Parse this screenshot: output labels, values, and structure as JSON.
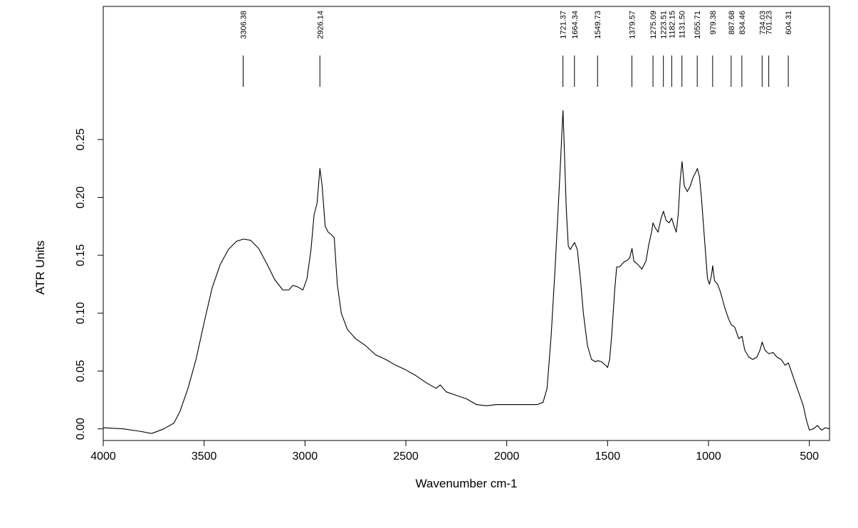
{
  "chart_data": {
    "type": "line",
    "title": "",
    "xlabel": "Wavenumber cm-1",
    "ylabel": "ATR Units",
    "xlim": [
      4000,
      400
    ],
    "ylim": [
      -0.01,
      0.365
    ],
    "x_reversed": true,
    "grid": false,
    "x_ticks": [
      {
        "value": 4000,
        "label": "4000"
      },
      {
        "value": 3500,
        "label": "3500"
      },
      {
        "value": 3000,
        "label": "3000"
      },
      {
        "value": 2500,
        "label": "2500"
      },
      {
        "value": 2000,
        "label": "2000"
      },
      {
        "value": 1500,
        "label": "1500"
      },
      {
        "value": 1000,
        "label": "1000"
      },
      {
        "value": 500,
        "label": "500"
      }
    ],
    "y_ticks": [
      {
        "value": 0.0,
        "label": "0.00"
      },
      {
        "value": 0.05,
        "label": "0.05"
      },
      {
        "value": 0.1,
        "label": "0.10"
      },
      {
        "value": 0.15,
        "label": "0.15"
      },
      {
        "value": 0.2,
        "label": "0.20"
      },
      {
        "value": 0.25,
        "label": "0.25"
      }
    ],
    "series": [
      {
        "points": [
          [
            4000,
            0.001
          ],
          [
            3900,
            0.0
          ],
          [
            3820,
            -0.002
          ],
          [
            3760,
            -0.004
          ],
          [
            3700,
            0.0
          ],
          [
            3650,
            0.005
          ],
          [
            3620,
            0.015
          ],
          [
            3580,
            0.035
          ],
          [
            3540,
            0.06
          ],
          [
            3500,
            0.092
          ],
          [
            3460,
            0.122
          ],
          [
            3420,
            0.142
          ],
          [
            3380,
            0.155
          ],
          [
            3340,
            0.162
          ],
          [
            3306,
            0.164
          ],
          [
            3270,
            0.163
          ],
          [
            3230,
            0.156
          ],
          [
            3190,
            0.143
          ],
          [
            3150,
            0.129
          ],
          [
            3110,
            0.12
          ],
          [
            3080,
            0.12
          ],
          [
            3060,
            0.124
          ],
          [
            3040,
            0.123
          ],
          [
            3010,
            0.12
          ],
          [
            2990,
            0.13
          ],
          [
            2970,
            0.155
          ],
          [
            2955,
            0.185
          ],
          [
            2940,
            0.195
          ],
          [
            2926,
            0.225
          ],
          [
            2915,
            0.21
          ],
          [
            2900,
            0.175
          ],
          [
            2885,
            0.17
          ],
          [
            2870,
            0.168
          ],
          [
            2855,
            0.165
          ],
          [
            2840,
            0.125
          ],
          [
            2820,
            0.1
          ],
          [
            2790,
            0.086
          ],
          [
            2750,
            0.078
          ],
          [
            2700,
            0.072
          ],
          [
            2650,
            0.064
          ],
          [
            2600,
            0.06
          ],
          [
            2550,
            0.055
          ],
          [
            2500,
            0.051
          ],
          [
            2450,
            0.046
          ],
          [
            2400,
            0.04
          ],
          [
            2350,
            0.035
          ],
          [
            2330,
            0.038
          ],
          [
            2300,
            0.032
          ],
          [
            2250,
            0.029
          ],
          [
            2200,
            0.026
          ],
          [
            2150,
            0.021
          ],
          [
            2100,
            0.02
          ],
          [
            2050,
            0.021
          ],
          [
            2000,
            0.021
          ],
          [
            1950,
            0.021
          ],
          [
            1900,
            0.021
          ],
          [
            1850,
            0.021
          ],
          [
            1820,
            0.023
          ],
          [
            1800,
            0.035
          ],
          [
            1780,
            0.08
          ],
          [
            1760,
            0.14
          ],
          [
            1745,
            0.19
          ],
          [
            1735,
            0.225
          ],
          [
            1725,
            0.262
          ],
          [
            1721,
            0.275
          ],
          [
            1715,
            0.245
          ],
          [
            1705,
            0.19
          ],
          [
            1695,
            0.158
          ],
          [
            1685,
            0.155
          ],
          [
            1675,
            0.158
          ],
          [
            1664,
            0.161
          ],
          [
            1650,
            0.155
          ],
          [
            1635,
            0.13
          ],
          [
            1620,
            0.1
          ],
          [
            1600,
            0.072
          ],
          [
            1580,
            0.06
          ],
          [
            1560,
            0.058
          ],
          [
            1549,
            0.059
          ],
          [
            1530,
            0.058
          ],
          [
            1510,
            0.055
          ],
          [
            1500,
            0.053
          ],
          [
            1490,
            0.06
          ],
          [
            1480,
            0.08
          ],
          [
            1465,
            0.12
          ],
          [
            1455,
            0.14
          ],
          [
            1440,
            0.14
          ],
          [
            1420,
            0.144
          ],
          [
            1400,
            0.146
          ],
          [
            1390,
            0.148
          ],
          [
            1379,
            0.156
          ],
          [
            1370,
            0.145
          ],
          [
            1350,
            0.142
          ],
          [
            1330,
            0.138
          ],
          [
            1310,
            0.145
          ],
          [
            1295,
            0.16
          ],
          [
            1282,
            0.17
          ],
          [
            1275,
            0.178
          ],
          [
            1265,
            0.174
          ],
          [
            1250,
            0.17
          ],
          [
            1235,
            0.182
          ],
          [
            1223,
            0.188
          ],
          [
            1210,
            0.18
          ],
          [
            1195,
            0.178
          ],
          [
            1182,
            0.182
          ],
          [
            1170,
            0.175
          ],
          [
            1160,
            0.17
          ],
          [
            1150,
            0.185
          ],
          [
            1140,
            0.215
          ],
          [
            1131,
            0.231
          ],
          [
            1120,
            0.21
          ],
          [
            1105,
            0.205
          ],
          [
            1090,
            0.21
          ],
          [
            1075,
            0.218
          ],
          [
            1062,
            0.222
          ],
          [
            1055,
            0.225
          ],
          [
            1045,
            0.218
          ],
          [
            1035,
            0.2
          ],
          [
            1020,
            0.165
          ],
          [
            1005,
            0.13
          ],
          [
            995,
            0.125
          ],
          [
            985,
            0.133
          ],
          [
            979,
            0.141
          ],
          [
            970,
            0.128
          ],
          [
            955,
            0.125
          ],
          [
            940,
            0.118
          ],
          [
            920,
            0.105
          ],
          [
            900,
            0.095
          ],
          [
            887,
            0.09
          ],
          [
            870,
            0.088
          ],
          [
            850,
            0.078
          ],
          [
            834,
            0.08
          ],
          [
            820,
            0.068
          ],
          [
            800,
            0.062
          ],
          [
            780,
            0.06
          ],
          [
            760,
            0.062
          ],
          [
            745,
            0.068
          ],
          [
            734,
            0.075
          ],
          [
            720,
            0.068
          ],
          [
            701,
            0.065
          ],
          [
            680,
            0.066
          ],
          [
            660,
            0.062
          ],
          [
            640,
            0.06
          ],
          [
            620,
            0.055
          ],
          [
            604,
            0.057
          ],
          [
            590,
            0.05
          ],
          [
            570,
            0.04
          ],
          [
            550,
            0.03
          ],
          [
            530,
            0.02
          ],
          [
            515,
            0.008
          ],
          [
            500,
            -0.001
          ],
          [
            480,
            0.0
          ],
          [
            460,
            0.003
          ],
          [
            440,
            -0.001
          ],
          [
            420,
            0.001
          ],
          [
            400,
            0.0
          ]
        ]
      }
    ],
    "peak_labels": [
      {
        "wavenumber": 3306.38,
        "label": "3306.38"
      },
      {
        "wavenumber": 2926.14,
        "label": "2926.14"
      },
      {
        "wavenumber": 1721.37,
        "label": "1721.37"
      },
      {
        "wavenumber": 1664.34,
        "label": "1664.34"
      },
      {
        "wavenumber": 1549.73,
        "label": "1549.73"
      },
      {
        "wavenumber": 1379.57,
        "label": "1379.57"
      },
      {
        "wavenumber": 1275.09,
        "label": "1275.09"
      },
      {
        "wavenumber": 1223.51,
        "label": "1223.51"
      },
      {
        "wavenumber": 1182.15,
        "label": "1182.15"
      },
      {
        "wavenumber": 1131.5,
        "label": "1131.50"
      },
      {
        "wavenumber": 1055.71,
        "label": "1055.71"
      },
      {
        "wavenumber": 979.38,
        "label": "979.38"
      },
      {
        "wavenumber": 887.68,
        "label": "887.68"
      },
      {
        "wavenumber": 834.46,
        "label": "834.46"
      },
      {
        "wavenumber": 734.03,
        "label": "734.03"
      },
      {
        "wavenumber": 701.23,
        "label": "701.23"
      },
      {
        "wavenumber": 604.31,
        "label": "604.31"
      }
    ]
  }
}
